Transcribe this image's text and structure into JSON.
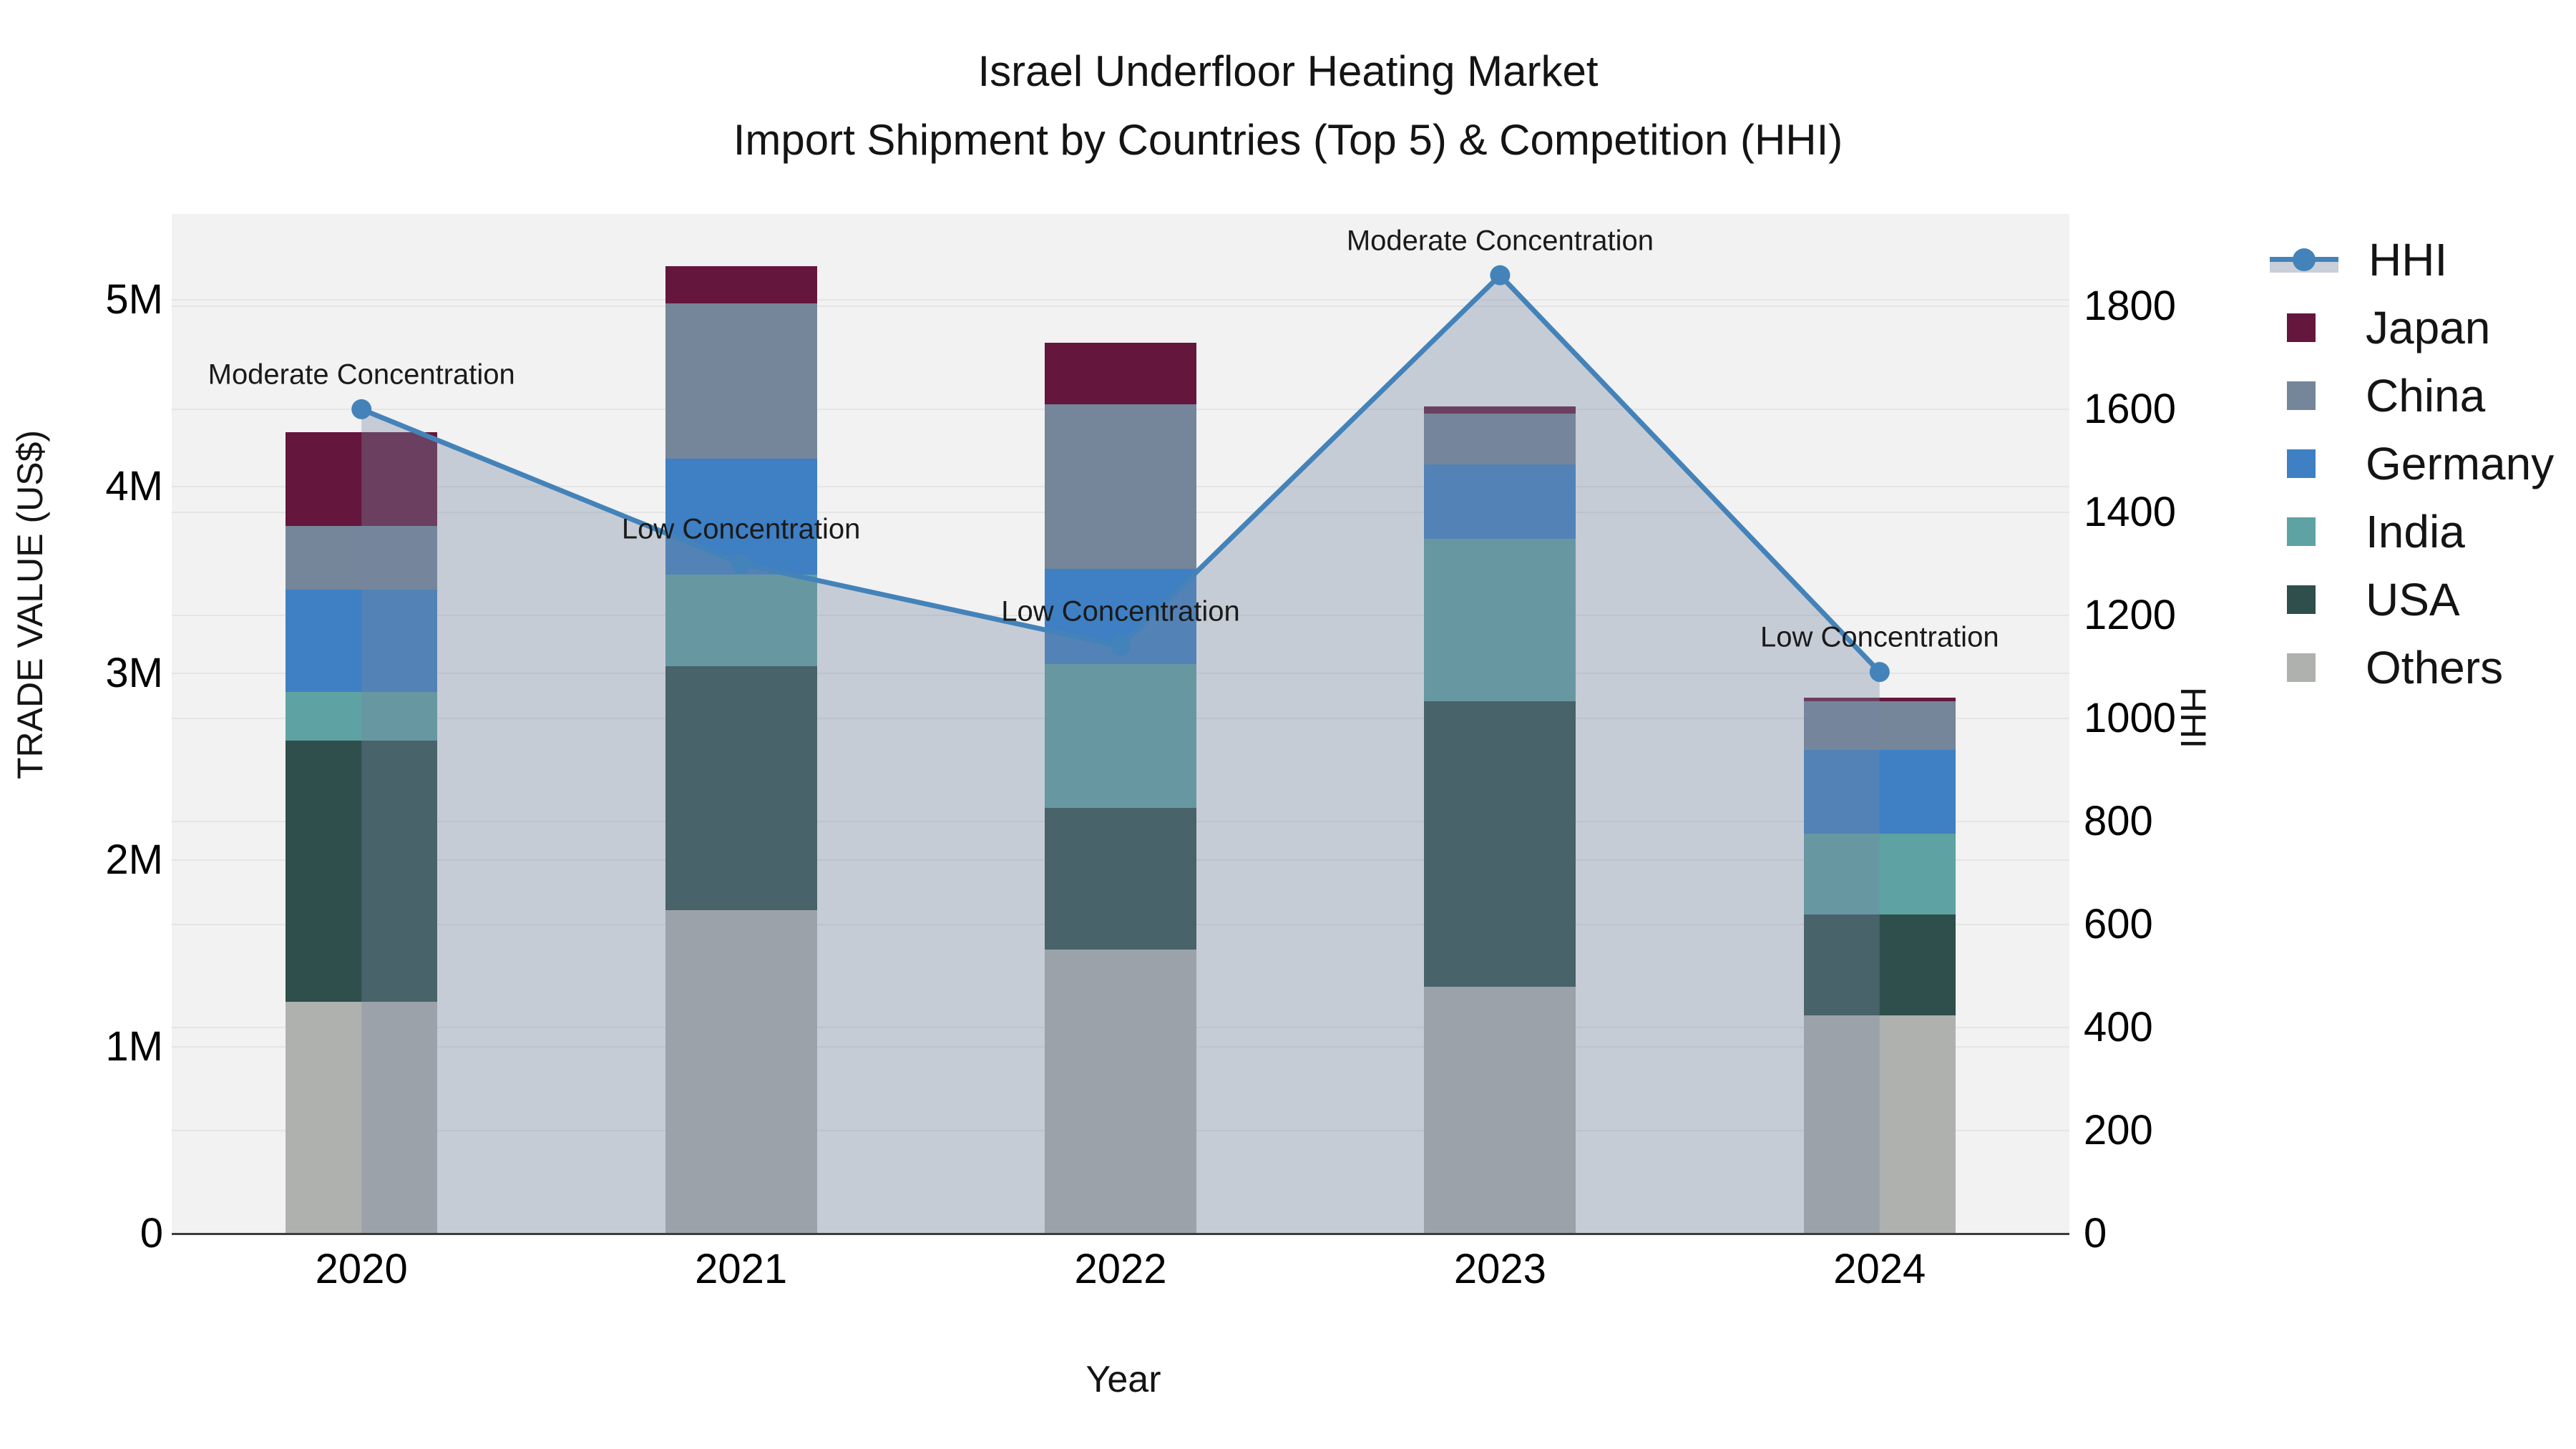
{
  "title": {
    "line1": "Israel Underfloor Heating Market",
    "line2": "Import Shipment by Countries (Top 5) & Competition (HHI)"
  },
  "axes": {
    "left": {
      "title": "TRADE VALUE (US$)",
      "tick_labels": [
        "0",
        "1M",
        "2M",
        "3M",
        "4M",
        "5M"
      ]
    },
    "right": {
      "title": "HHI",
      "tick_labels": [
        "0",
        "200",
        "400",
        "600",
        "800",
        "1000",
        "1200",
        "1400",
        "1600",
        "1800"
      ]
    },
    "x": {
      "title": "Year",
      "tick_labels": [
        "2020",
        "2021",
        "2022",
        "2023",
        "2024"
      ]
    }
  },
  "legend": {
    "items": [
      {
        "label": "HHI",
        "symbol": "line",
        "color": "#4483B9"
      },
      {
        "label": "Japan",
        "symbol": "swatch",
        "color": "#65163C"
      },
      {
        "label": "China",
        "symbol": "swatch",
        "color": "#75869A"
      },
      {
        "label": "Germany",
        "symbol": "swatch",
        "color": "#3F7FC3"
      },
      {
        "label": "India",
        "symbol": "swatch",
        "color": "#5EA2A3"
      },
      {
        "label": "USA",
        "symbol": "swatch",
        "color": "#2E4F4B"
      },
      {
        "label": "Others",
        "symbol": "swatch",
        "color": "#AFB1AF"
      }
    ]
  },
  "colors": {
    "plot_background": "#F2F2F2",
    "gridline": "rgba(0,0,0,0.05)",
    "axis_line": "#3C3C3C",
    "hhi_line": "#4483B9",
    "hhi_area_rgb": "119,137,161",
    "hhi_area_opacity": 0.36
  },
  "chart_data": {
    "type": "bar",
    "subtype": "stacked-bars-with-line-area-overlay",
    "title": "Israel Underfloor Heating Market — Import Shipment by Countries (Top 5) & Competition (HHI)",
    "categories": [
      "2020",
      "2021",
      "2022",
      "2023",
      "2024"
    ],
    "xlabel": "Year",
    "ylabel_left": "TRADE VALUE (US$)",
    "ylabel_right": "HHI",
    "left_axis": {
      "range": [
        0,
        5460000
      ],
      "tick_step": 1000000,
      "tick_format": "millions"
    },
    "right_axis": {
      "range": [
        0,
        1979
      ],
      "tick_step": 200
    },
    "grid": true,
    "legend_position": "right",
    "bar_series_bottom_to_top": [
      {
        "name": "Others",
        "color": "#AFB1AF",
        "values": [
          1240000,
          1730000,
          1520000,
          1320000,
          1170000
        ]
      },
      {
        "name": "USA",
        "color": "#2E4F4B",
        "values": [
          1400000,
          1310000,
          760000,
          1530000,
          540000
        ]
      },
      {
        "name": "India",
        "color": "#5EA2A3",
        "values": [
          260000,
          490000,
          770000,
          870000,
          430000
        ]
      },
      {
        "name": "Germany",
        "color": "#3F7FC3",
        "values": [
          550000,
          620000,
          510000,
          400000,
          450000
        ]
      },
      {
        "name": "China",
        "color": "#75869A",
        "values": [
          340000,
          830000,
          880000,
          270000,
          260000
        ]
      },
      {
        "name": "Japan",
        "color": "#65163C",
        "values": [
          500000,
          200000,
          330000,
          40000,
          20000
        ]
      }
    ],
    "bar_totals": [
      4290000,
      5180000,
      4770000,
      4430000,
      2870000
    ],
    "line_series": {
      "name": "HHI",
      "axis": "right",
      "color": "#4483B9",
      "area_fill": true,
      "values": [
        1600,
        1300,
        1140,
        1860,
        1090
      ]
    },
    "annotations": [
      {
        "year": "2020",
        "text": "Moderate Concentration"
      },
      {
        "year": "2021",
        "text": "Low Concentration"
      },
      {
        "year": "2022",
        "text": "Low Concentration"
      },
      {
        "year": "2023",
        "text": "Moderate Concentration"
      },
      {
        "year": "2024",
        "text": "Low Concentration"
      }
    ]
  }
}
